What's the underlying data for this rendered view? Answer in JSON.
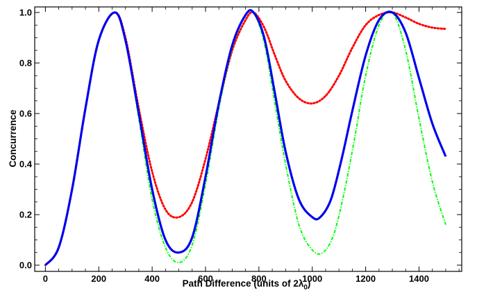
{
  "chart_data": {
    "type": "line",
    "title": "",
    "xlabel": "Path Difference (units of 2λ",
    "xlabel_subscript": "0",
    "xlabel_suffix": ")",
    "ylabel": "Concurrence",
    "xlim": [
      0,
      1500
    ],
    "ylim": [
      0,
      1.0
    ],
    "x_ticks": [
      "0",
      "200",
      "400",
      "600",
      "800",
      "1000",
      "1200",
      "1400"
    ],
    "y_ticks": [
      "0.0",
      "0.2",
      "0.4",
      "0.6",
      "0.8",
      "1.0"
    ],
    "grid": false,
    "legend": "none",
    "series": [
      {
        "color": "#ff0000",
        "style": "dotted",
        "x": [
          0,
          50,
          100,
          150,
          200,
          260,
          300,
          350,
          400,
          450,
          500,
          550,
          600,
          650,
          700,
          750,
          780,
          820,
          860,
          900,
          950,
          1000,
          1050,
          1100,
          1150,
          1200,
          1250,
          1300,
          1350,
          1400,
          1450,
          1500
        ],
        "y": [
          0.0,
          0.07,
          0.3,
          0.62,
          0.89,
          1.0,
          0.9,
          0.62,
          0.37,
          0.22,
          0.19,
          0.25,
          0.42,
          0.64,
          0.85,
          0.97,
          1.0,
          0.94,
          0.83,
          0.73,
          0.66,
          0.64,
          0.67,
          0.75,
          0.86,
          0.95,
          0.99,
          1.0,
          0.98,
          0.955,
          0.94,
          0.935
        ]
      },
      {
        "color": "#00ff00",
        "style": "dash-dot",
        "x": [
          0,
          50,
          100,
          150,
          200,
          260,
          300,
          350,
          400,
          450,
          500,
          550,
          600,
          650,
          700,
          750,
          780,
          820,
          860,
          900,
          950,
          1000,
          1040,
          1080,
          1120,
          1160,
          1200,
          1250,
          1300,
          1350,
          1400,
          1450,
          1500
        ],
        "y": [
          0.0,
          0.07,
          0.3,
          0.62,
          0.89,
          1.0,
          0.89,
          0.58,
          0.26,
          0.07,
          0.01,
          0.08,
          0.32,
          0.62,
          0.86,
          0.99,
          1.0,
          0.88,
          0.64,
          0.4,
          0.16,
          0.06,
          0.05,
          0.12,
          0.29,
          0.51,
          0.75,
          0.95,
          1.0,
          0.85,
          0.58,
          0.33,
          0.16
        ]
      },
      {
        "color": "#0000ee",
        "style": "solid",
        "x": [
          0,
          50,
          100,
          150,
          200,
          260,
          300,
          350,
          400,
          450,
          500,
          550,
          600,
          650,
          700,
          750,
          780,
          820,
          860,
          900,
          950,
          1000,
          1030,
          1070,
          1110,
          1150,
          1200,
          1250,
          1300,
          1350,
          1400,
          1450,
          1500
        ],
        "y": [
          0.0,
          0.07,
          0.3,
          0.62,
          0.89,
          1.0,
          0.89,
          0.6,
          0.3,
          0.1,
          0.05,
          0.11,
          0.35,
          0.64,
          0.87,
          0.99,
          1.0,
          0.9,
          0.68,
          0.45,
          0.26,
          0.19,
          0.19,
          0.26,
          0.42,
          0.61,
          0.83,
          0.97,
          1.0,
          0.92,
          0.74,
          0.56,
          0.43
        ]
      }
    ]
  }
}
